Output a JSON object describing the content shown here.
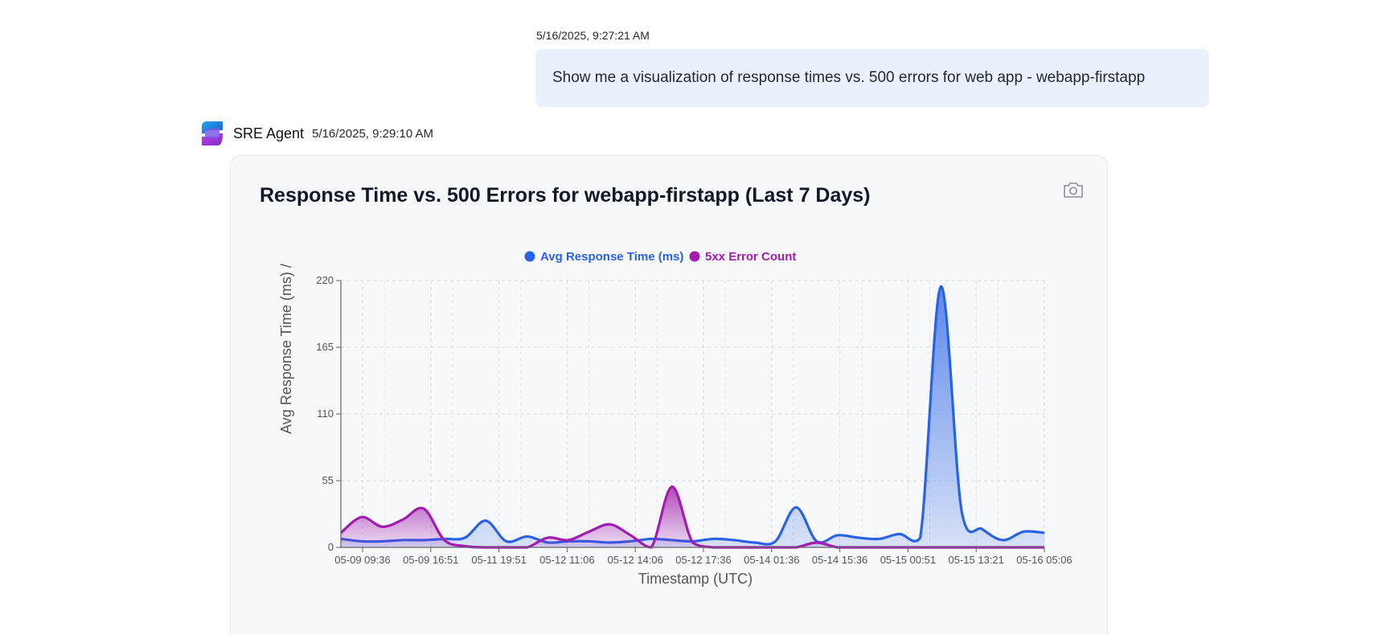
{
  "user_message": {
    "timestamp": "5/16/2025, 9:27:21 AM",
    "text": "Show me a visualization of response times vs. 500 errors for web app - webapp-firstapp"
  },
  "agent": {
    "name": "SRE Agent",
    "timestamp": "5/16/2025, 9:29:10 AM",
    "avatar_icon": "sre-agent-logo-icon",
    "camera_icon": "camera-icon"
  },
  "colors": {
    "response": "#2962e6",
    "errors": "#a21caf",
    "bubble": "#e8f1fc"
  },
  "chart_data": {
    "type": "area",
    "title": "Response Time vs. 500 Errors for webapp-firstapp (Last 7 Days)",
    "xlabel": "Timestamp (UTC)",
    "ylabel": "Avg Response Time (ms) /",
    "ylim": [
      0,
      220
    ],
    "yticks": [
      "0",
      "55",
      "110",
      "165",
      "220"
    ],
    "xticks": [
      "05-09 09:36",
      "05-09 16:51",
      "05-11 19:51",
      "05-12 11:06",
      "05-12 14:06",
      "05-12 17:36",
      "05-14 01:36",
      "05-14 15:36",
      "05-15 00:51",
      "05-15 13:21",
      "05-16 05:06"
    ],
    "grid": true,
    "legend_position": "top-center",
    "series": [
      {
        "name": "Avg Response Time (ms)",
        "values": [
          7,
          5,
          5,
          6,
          6,
          7,
          8,
          22,
          5,
          9,
          4,
          5,
          5,
          4,
          5,
          7,
          6,
          5,
          7,
          6,
          4,
          5,
          33,
          5,
          10,
          8,
          7,
          11,
          8,
          215,
          30,
          15,
          6,
          13,
          12
        ]
      },
      {
        "name": "5xx Error Count",
        "values": [
          12,
          25,
          17,
          23,
          32,
          6,
          1,
          0,
          0,
          0,
          8,
          6,
          13,
          19,
          10,
          0,
          50,
          4,
          0,
          0,
          0,
          0,
          0,
          4,
          0,
          0,
          0,
          0,
          0,
          0,
          0,
          0,
          0,
          0,
          0
        ]
      }
    ]
  }
}
